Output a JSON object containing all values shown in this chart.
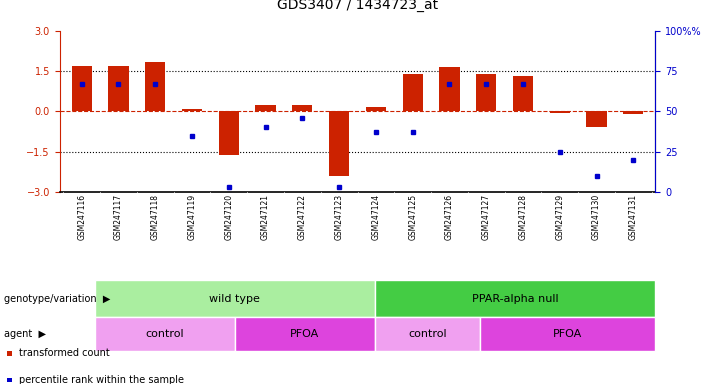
{
  "title": "GDS3407 / 1434723_at",
  "samples": [
    "GSM247116",
    "GSM247117",
    "GSM247118",
    "GSM247119",
    "GSM247120",
    "GSM247121",
    "GSM247122",
    "GSM247123",
    "GSM247124",
    "GSM247125",
    "GSM247126",
    "GSM247127",
    "GSM247128",
    "GSM247129",
    "GSM247130",
    "GSM247131"
  ],
  "bar_values": [
    1.7,
    1.7,
    1.85,
    0.1,
    -1.62,
    0.25,
    0.22,
    -2.4,
    0.18,
    1.4,
    1.65,
    1.4,
    1.3,
    -0.07,
    -0.6,
    -0.1
  ],
  "dot_values": [
    67,
    67,
    67,
    35,
    3,
    40,
    46,
    3,
    37,
    37,
    67,
    67,
    67,
    25,
    10,
    20
  ],
  "ylim": [
    -3,
    3
  ],
  "y2lim": [
    0,
    100
  ],
  "yticks": [
    -3,
    -1.5,
    0,
    1.5,
    3
  ],
  "y2ticks": [
    0,
    25,
    50,
    75,
    100
  ],
  "bar_color": "#cc2200",
  "dot_color": "#0000cc",
  "genotype_groups": [
    {
      "label": "wild type",
      "start": 0,
      "end": 8,
      "color": "#aaeea a"
    },
    {
      "label": "PPAR-alpha null",
      "start": 8,
      "end": 16,
      "color": "#44cc44"
    }
  ],
  "agent_groups": [
    {
      "label": "control",
      "start": 0,
      "end": 4,
      "color": "#f0a0f0"
    },
    {
      "label": "PFOA",
      "start": 4,
      "end": 8,
      "color": "#dd44dd"
    },
    {
      "label": "control",
      "start": 8,
      "end": 11,
      "color": "#f0a0f0"
    },
    {
      "label": "PFOA",
      "start": 11,
      "end": 16,
      "color": "#dd44dd"
    }
  ],
  "legend_labels": [
    "transformed count",
    "percentile rank within the sample"
  ],
  "legend_colors": [
    "#cc2200",
    "#0000cc"
  ],
  "bar_width": 0.55,
  "background_color": "#ffffff",
  "label_bg": "#cccccc",
  "geno_label": "genotype/variation",
  "agent_label": "agent"
}
